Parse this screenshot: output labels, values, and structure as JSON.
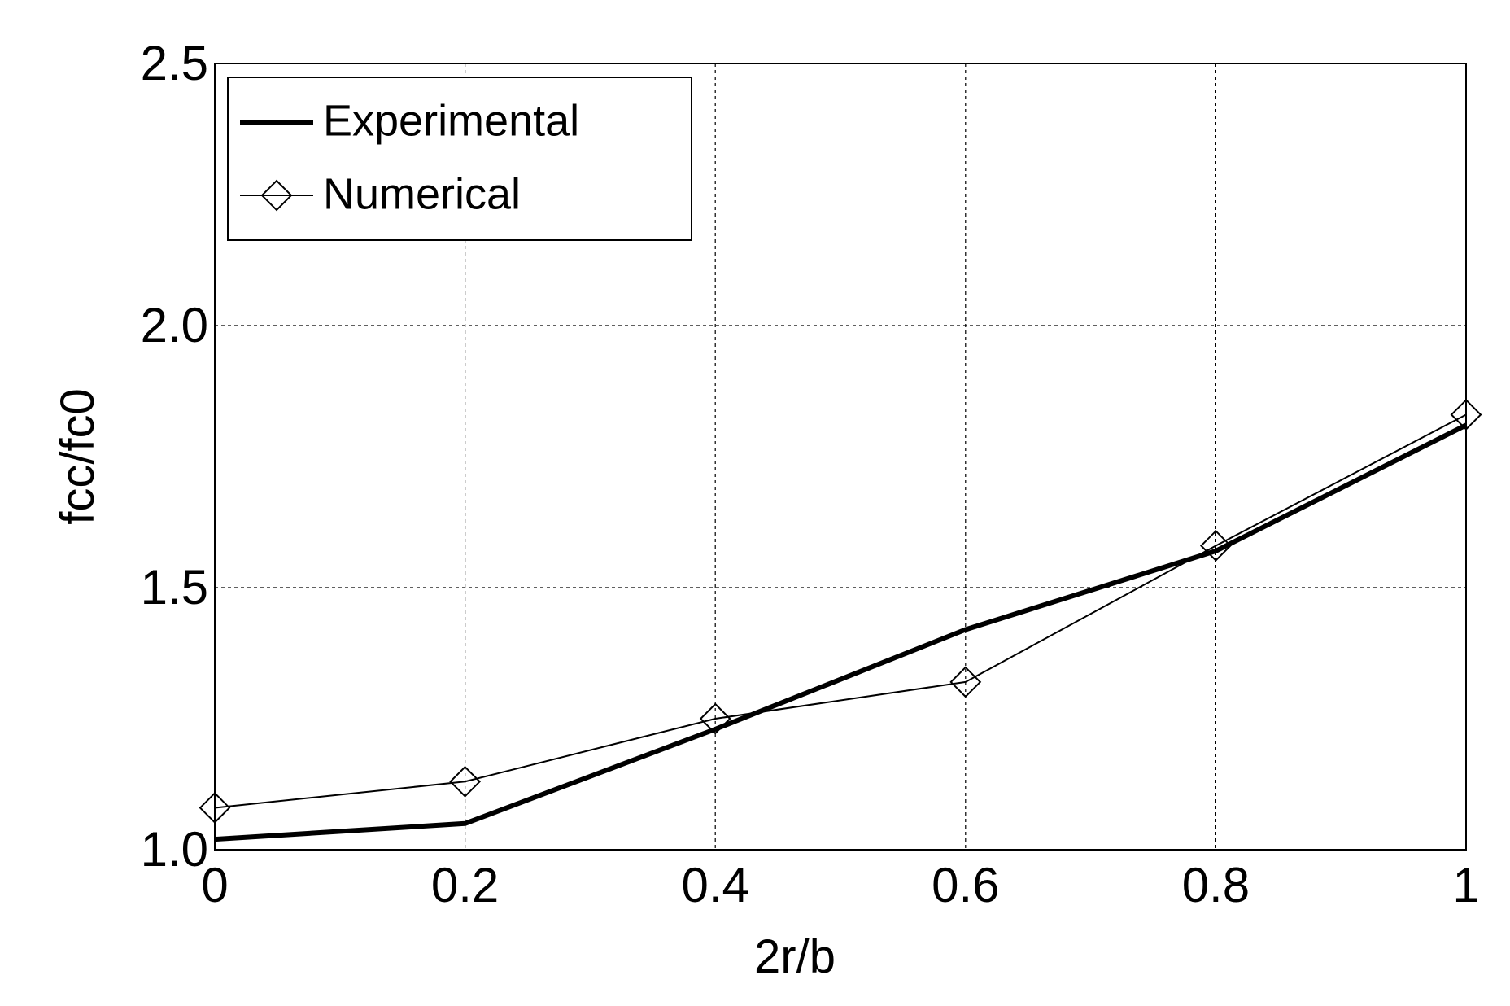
{
  "chart_data": {
    "type": "line",
    "title": "",
    "xlabel": "2r/b",
    "ylabel": "fcc/fc0",
    "xlim": [
      0,
      1
    ],
    "ylim": [
      1.0,
      2.5
    ],
    "grid": true,
    "x_ticks": [
      0,
      0.2,
      0.4,
      0.6,
      0.8,
      1
    ],
    "x_tick_labels": [
      "0",
      "0.2",
      "0.4",
      "0.6",
      "0.8",
      "1"
    ],
    "y_ticks": [
      1.0,
      1.5,
      2.0,
      2.5
    ],
    "y_tick_labels": [
      "1.0",
      "1.5",
      "2.0",
      "2.5"
    ],
    "legend_position": "top-left",
    "x": [
      0,
      0.2,
      0.4,
      0.6,
      0.8,
      1.0
    ],
    "series": [
      {
        "name": "Experimental",
        "marker": "none",
        "line_style": "thick",
        "values": [
          1.02,
          1.05,
          1.23,
          1.42,
          1.57,
          1.81
        ]
      },
      {
        "name": "Numerical",
        "marker": "diamond",
        "line_style": "thin",
        "values": [
          1.08,
          1.13,
          1.25,
          1.32,
          1.58,
          1.83
        ]
      }
    ]
  }
}
